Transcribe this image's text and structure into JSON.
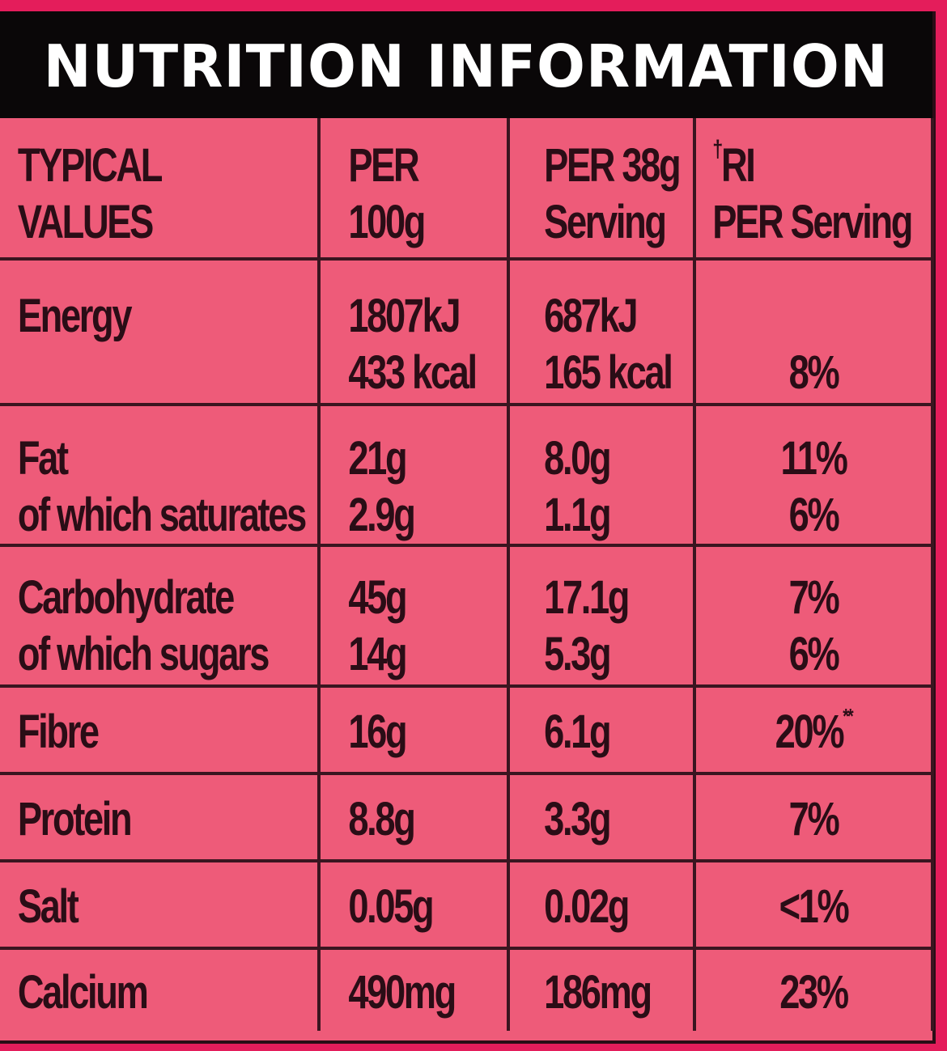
{
  "title": "NUTRITION INFORMATION",
  "header": {
    "col1": [
      "TYPICAL",
      "VALUES"
    ],
    "col2": [
      "PER",
      "100g"
    ],
    "col3": [
      "PER 38g",
      "Serving"
    ],
    "col4_mark": "†",
    "col4": [
      "RI",
      "PER Serving"
    ]
  },
  "rows": [
    {
      "id": "energy",
      "labels": [
        "Energy"
      ],
      "per100": [
        "1807kJ",
        "433 kcal"
      ],
      "perServing": [
        "687kJ",
        "165 kcal"
      ],
      "ri": [
        "8%"
      ]
    },
    {
      "id": "fat",
      "labels": [
        "Fat",
        "of which saturates"
      ],
      "per100": [
        "21g",
        "2.9g"
      ],
      "perServing": [
        "8.0g",
        "1.1g"
      ],
      "ri": [
        "11%",
        "6%"
      ]
    },
    {
      "id": "carbohydrate",
      "labels": [
        "Carbohydrate",
        "of which sugars"
      ],
      "per100": [
        "45g",
        "14g"
      ],
      "perServing": [
        "17.1g",
        "5.3g"
      ],
      "ri": [
        "7%",
        "6%"
      ]
    },
    {
      "id": "fibre",
      "labels": [
        "Fibre"
      ],
      "per100": [
        "16g"
      ],
      "perServing": [
        "6.1g"
      ],
      "ri": [
        "20%"
      ],
      "ri_mark": "**"
    },
    {
      "id": "protein",
      "labels": [
        "Protein"
      ],
      "per100": [
        "8.8g"
      ],
      "perServing": [
        "3.3g"
      ],
      "ri": [
        "7%"
      ]
    },
    {
      "id": "salt",
      "labels": [
        "Salt"
      ],
      "per100": [
        "0.05g"
      ],
      "perServing": [
        "0.02g"
      ],
      "ri": [
        "<1%"
      ]
    },
    {
      "id": "calcium",
      "labels": [
        "Calcium"
      ],
      "per100": [
        "490mg"
      ],
      "perServing": [
        "186mg"
      ],
      "ri": [
        "23%"
      ]
    }
  ],
  "colors": {
    "outer_border": "#e41d5b",
    "panel": "#ee5b79",
    "title_bar": "#0a0708",
    "title_text": "#ffffff",
    "text": "#2a0d16",
    "grid": "#3a1520"
  }
}
